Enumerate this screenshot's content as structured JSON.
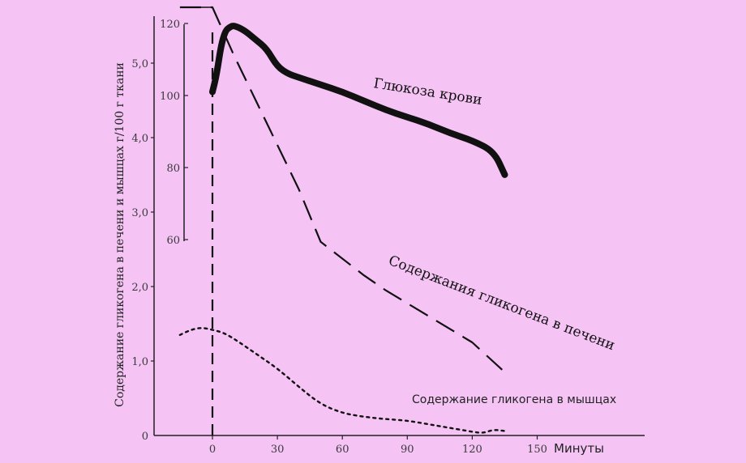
{
  "chart_data": {
    "type": "line",
    "xlabel": "Минуты",
    "ylabel": "Содержание гликогена в печени и мышцах г/100 г ткани",
    "xlim": [
      -15,
      140
    ],
    "ylim": [
      0,
      5.5
    ],
    "x_ticks": [
      "0",
      "30",
      "60",
      "90",
      "120",
      "150"
    ],
    "x_tick_values": [
      0,
      30,
      60,
      90,
      120,
      150
    ],
    "y_ticks": [
      "1,0",
      "2,0",
      "3,0",
      "4,0",
      "5,0"
    ],
    "y_tick_values": [
      1,
      2,
      3,
      4,
      5
    ],
    "y2_ticks": [
      "60",
      "80",
      "100",
      "120"
    ],
    "y2_tick_values": [
      60,
      80,
      100,
      120
    ],
    "y2lim": [
      60,
      120
    ],
    "series": [
      {
        "name": "Глюкоза крови",
        "axis": "y2",
        "style": "solid",
        "x": [
          0,
          2,
          4,
          6,
          8,
          10,
          15,
          20,
          25,
          30,
          35,
          40,
          50,
          60,
          70,
          80,
          90,
          100,
          110,
          120,
          130,
          135
        ],
        "y": [
          101,
          106,
          114,
          118,
          119,
          119.5,
          118,
          115.5,
          113,
          108,
          106,
          105,
          103,
          101,
          98.5,
          96,
          94,
          92,
          89.5,
          87.5,
          84.5,
          78
        ]
      },
      {
        "name": "Содержания гликогена в печени",
        "axis": "y",
        "style": "dashed",
        "x": [
          -15,
          0,
          10,
          20,
          30,
          40,
          50,
          70,
          80,
          100,
          120,
          135
        ],
        "y": [
          5.75,
          5.75,
          5.1,
          4.5,
          3.9,
          3.3,
          2.6,
          2.15,
          1.95,
          1.6,
          1.25,
          0.85
        ]
      },
      {
        "name": "Содержание гликогена в мышцах",
        "axis": "y",
        "style": "dotted",
        "x": [
          -15,
          -10,
          -5,
          0,
          5,
          10,
          20,
          30,
          40,
          50,
          60,
          70,
          80,
          90,
          100,
          110,
          120,
          125,
          130,
          135
        ],
        "y": [
          1.35,
          1.42,
          1.45,
          1.42,
          1.38,
          1.3,
          1.1,
          0.9,
          0.65,
          0.42,
          0.3,
          0.25,
          0.22,
          0.2,
          0.15,
          0.1,
          0.05,
          0.03,
          0.08,
          0.06
        ]
      }
    ],
    "annotations": [
      "Глюкоза крови",
      "Содержания гликогена в печени",
      "Содержание гликогена в мышцах"
    ]
  },
  "colors": {
    "background": "#f5c4f5",
    "line": "#111111",
    "axis": "#222222"
  }
}
